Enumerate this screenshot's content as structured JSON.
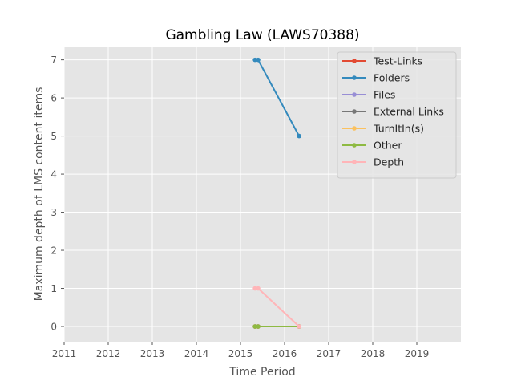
{
  "chart_data": {
    "type": "line",
    "title": "Gambling Law (LAWS70388)",
    "xlabel": "Time Period",
    "ylabel": "Maximum depth of LMS content items",
    "xlim": [
      2011,
      2020
    ],
    "ylim": [
      -0.4,
      7.35
    ],
    "xticks": [
      2011,
      2012,
      2013,
      2014,
      2015,
      2016,
      2017,
      2018,
      2019
    ],
    "yticks": [
      0,
      1,
      2,
      3,
      4,
      5,
      6,
      7
    ],
    "grid": true,
    "legend_position": "top-right",
    "series": [
      {
        "name": "Test-Links",
        "color": "#e24a33",
        "x": [
          2015.33,
          2015.4,
          2016.33
        ],
        "y": [
          0,
          0,
          0
        ]
      },
      {
        "name": "Folders",
        "color": "#348abd",
        "x": [
          2015.33,
          2015.4,
          2016.33
        ],
        "y": [
          7,
          7,
          5
        ]
      },
      {
        "name": "Files",
        "color": "#988ed5",
        "x": [
          2015.33,
          2015.4,
          2016.33
        ],
        "y": [
          0,
          0,
          0
        ]
      },
      {
        "name": "External Links",
        "color": "#777777",
        "x": [
          2015.33,
          2015.4,
          2016.33
        ],
        "y": [
          0,
          0,
          0
        ]
      },
      {
        "name": "TurnItIn(s)",
        "color": "#fbc15e",
        "x": [
          2015.33,
          2015.4,
          2016.33
        ],
        "y": [
          0,
          0,
          0
        ]
      },
      {
        "name": "Other",
        "color": "#8eba42",
        "x": [
          2015.33,
          2015.4,
          2016.33
        ],
        "y": [
          0,
          0,
          0
        ]
      },
      {
        "name": "Depth",
        "color": "#ffb5b8",
        "x": [
          2015.33,
          2015.4,
          2016.33
        ],
        "y": [
          1,
          1,
          0
        ]
      }
    ]
  }
}
